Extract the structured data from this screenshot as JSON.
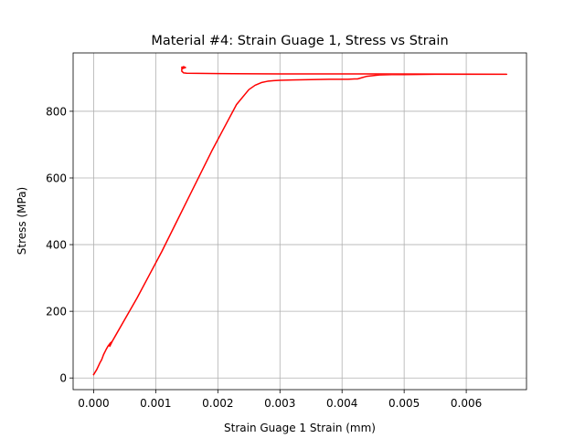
{
  "chart_data": {
    "type": "line",
    "title": "Material #4: Strain Guage 1, Stress vs Strain",
    "xlabel": "Strain Guage 1 Strain (mm)",
    "ylabel": "Stress (MPa)",
    "xlim": [
      -0.00033,
      0.00697
    ],
    "ylim": [
      -35,
      975
    ],
    "xticks": [
      0.0,
      0.001,
      0.002,
      0.003,
      0.004,
      0.005,
      0.006
    ],
    "xtick_labels": [
      "0.000",
      "0.001",
      "0.002",
      "0.003",
      "0.004",
      "0.005",
      "0.006"
    ],
    "yticks": [
      0,
      200,
      400,
      600,
      800
    ],
    "ytick_labels": [
      "0",
      "200",
      "400",
      "600",
      "800"
    ],
    "grid": true,
    "series": [
      {
        "color": "#ff0000",
        "x": [
          0.0,
          5e-05,
          0.0001,
          0.00013,
          0.00016,
          0.0002,
          0.00023,
          0.00027,
          0.00029,
          0.00026,
          0.0003,
          0.0005,
          0.0007,
          0.0009,
          0.0011,
          0.0013,
          0.0015,
          0.0017,
          0.0019,
          0.0021,
          0.0023,
          0.0025,
          0.0026,
          0.0027,
          0.0028,
          0.0029,
          0.003,
          0.0032,
          0.0035,
          0.0038,
          0.0041,
          0.0042,
          0.00425,
          0.0044,
          0.0046,
          0.0048,
          0.005,
          0.0055,
          0.006,
          0.00665,
          0.0045,
          0.003,
          0.002,
          0.0015,
          0.00145,
          0.00142,
          0.00142,
          0.00143,
          0.00145,
          0.00148,
          0.00143,
          0.00142
        ],
        "y": [
          10,
          25,
          45,
          55,
          70,
          85,
          95,
          105,
          108,
          95,
          110,
          175,
          240,
          310,
          380,
          455,
          530,
          605,
          680,
          750,
          820,
          865,
          878,
          886,
          890,
          892,
          893,
          894,
          895,
          896,
          896,
          897,
          897,
          905,
          909,
          910,
          910,
          911,
          911,
          911,
          912,
          912,
          913,
          914,
          915,
          920,
          928,
          932,
          934,
          931,
          928,
          932
        ]
      }
    ]
  }
}
